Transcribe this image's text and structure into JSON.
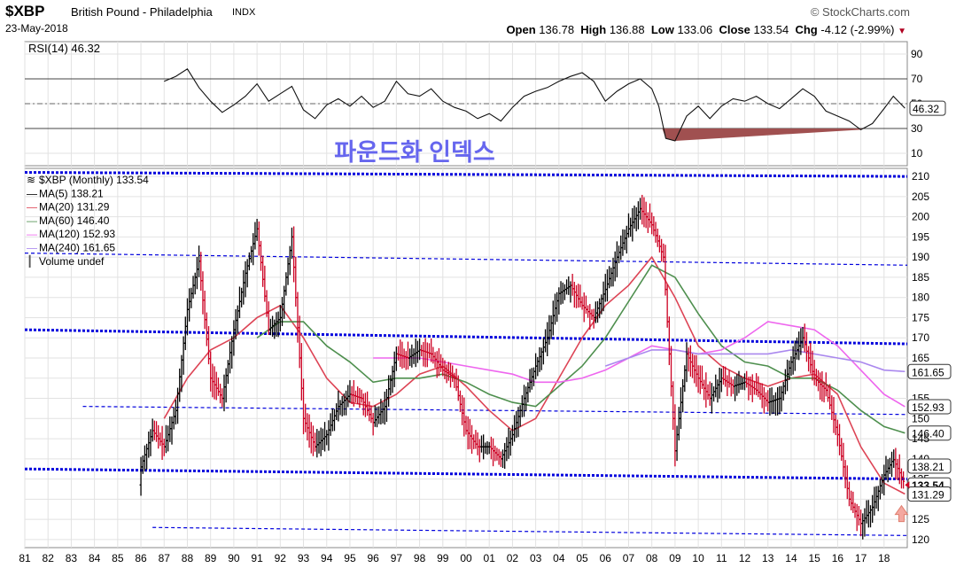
{
  "header": {
    "symbol": "$XBP",
    "name": "British Pound - Philadelphia",
    "exchange": "INDX",
    "brand": "© StockCharts.com",
    "date": "23-May-2018",
    "open_label": "Open",
    "open": "136.78",
    "high_label": "High",
    "high": "136.88",
    "low_label": "Low",
    "low": "133.06",
    "close_label": "Close",
    "close": "133.54",
    "chg_label": "Chg",
    "chg": "-4.12 (-2.99%)"
  },
  "annotation": "파운드화 인덱스",
  "colors": {
    "price": "#000000",
    "down_bar": "#cc0022",
    "ma5": "#222266",
    "ma20": "#dd4455",
    "ma60": "#4e8f4e",
    "ma120": "#ee66ee",
    "ma240": "#aa88ee",
    "trend": "#0000dd",
    "rsi_fill": "#a05050"
  },
  "chart_data": [
    {
      "type": "line",
      "title": "RSI(14) 46.32",
      "series": [
        {
          "name": "RSI(14)",
          "last": 46.32
        }
      ],
      "yticks": [
        10,
        30,
        50,
        70,
        90
      ],
      "ylim": [
        0,
        100
      ],
      "overbought": 70,
      "oversold": 30,
      "centerline": 50,
      "last_label": "46.32",
      "rsi": [
        [
          87,
          68
        ],
        [
          87.5,
          72
        ],
        [
          88,
          78
        ],
        [
          88.5,
          63
        ],
        [
          89,
          52
        ],
        [
          89.5,
          43
        ],
        [
          90,
          49
        ],
        [
          90.5,
          56
        ],
        [
          91,
          66
        ],
        [
          91.5,
          52
        ],
        [
          92,
          58
        ],
        [
          92.5,
          64
        ],
        [
          93,
          45
        ],
        [
          93.5,
          38
        ],
        [
          94,
          49
        ],
        [
          94.5,
          54
        ],
        [
          95,
          48
        ],
        [
          95.5,
          56
        ],
        [
          96,
          47
        ],
        [
          96.5,
          52
        ],
        [
          97,
          68
        ],
        [
          97.5,
          58
        ],
        [
          98,
          56
        ],
        [
          98.5,
          62
        ],
        [
          99,
          52
        ],
        [
          99.5,
          47
        ],
        [
          100,
          44
        ],
        [
          100.5,
          38
        ],
        [
          101,
          42
        ],
        [
          101.5,
          36
        ],
        [
          102,
          47
        ],
        [
          102.5,
          56
        ],
        [
          103,
          60
        ],
        [
          103.5,
          63
        ],
        [
          104,
          68
        ],
        [
          104.5,
          72
        ],
        [
          105,
          75
        ],
        [
          105.5,
          68
        ],
        [
          106,
          52
        ],
        [
          106.5,
          60
        ],
        [
          107,
          66
        ],
        [
          107.5,
          70
        ],
        [
          108,
          62
        ],
        [
          108.3,
          48
        ],
        [
          108.6,
          22
        ],
        [
          109,
          20
        ],
        [
          109.5,
          40
        ],
        [
          110,
          48
        ],
        [
          110.5,
          38
        ],
        [
          111,
          48
        ],
        [
          111.5,
          54
        ],
        [
          112,
          52
        ],
        [
          112.5,
          56
        ],
        [
          113,
          50
        ],
        [
          113.5,
          46
        ],
        [
          114,
          54
        ],
        [
          114.5,
          62
        ],
        [
          115,
          56
        ],
        [
          115.5,
          44
        ],
        [
          116,
          40
        ],
        [
          116.5,
          36
        ],
        [
          117,
          29
        ],
        [
          117.5,
          34
        ],
        [
          118,
          46
        ],
        [
          118.4,
          56
        ],
        [
          118.9,
          46.32
        ]
      ]
    },
    {
      "type": "line",
      "title": "$XBP (Monthly) 133.54",
      "x": [
        "81",
        "82",
        "83",
        "84",
        "85",
        "86",
        "87",
        "88",
        "89",
        "90",
        "91",
        "92",
        "93",
        "94",
        "95",
        "96",
        "97",
        "98",
        "99",
        "00",
        "01",
        "02",
        "03",
        "04",
        "05",
        "06",
        "07",
        "08",
        "09",
        "10",
        "11",
        "12",
        "13",
        "14",
        "15",
        "16",
        "17",
        "18"
      ],
      "ylim": [
        118,
        212
      ],
      "yticks": [
        120,
        125,
        130,
        135,
        140,
        145,
        150,
        155,
        160,
        165,
        170,
        175,
        180,
        185,
        190,
        195,
        200,
        205,
        210
      ],
      "series": [
        {
          "name": "$XBP (Monthly)",
          "last": 133.54,
          "values": [
            [
              86,
              138
            ],
            [
              86.5,
              147
            ],
            [
              87,
              143
            ],
            [
              87.5,
              152
            ],
            [
              88,
              177
            ],
            [
              88.5,
              189
            ],
            [
              89,
              160
            ],
            [
              89.5,
              155
            ],
            [
              90,
              172
            ],
            [
              90.5,
              186
            ],
            [
              91,
              197
            ],
            [
              91.5,
              172
            ],
            [
              92,
              175
            ],
            [
              92.5,
              195
            ],
            [
              93,
              150
            ],
            [
              93.5,
              143
            ],
            [
              94,
              146
            ],
            [
              94.5,
              153
            ],
            [
              95,
              156
            ],
            [
              95.5,
              155
            ],
            [
              96,
              149
            ],
            [
              96.5,
              153
            ],
            [
              97,
              166
            ],
            [
              97.5,
              165
            ],
            [
              98,
              167
            ],
            [
              98.5,
              166
            ],
            [
              99,
              162
            ],
            [
              99.5,
              160
            ],
            [
              100,
              147
            ],
            [
              100.5,
              143
            ],
            [
              101,
              143
            ],
            [
              101.5,
              140
            ],
            [
              102,
              146
            ],
            [
              102.5,
              155
            ],
            [
              103,
              163
            ],
            [
              103.5,
              170
            ],
            [
              104,
              181
            ],
            [
              104.5,
              183
            ],
            [
              105,
              178
            ],
            [
              105.5,
              175
            ],
            [
              106,
              182
            ],
            [
              106.5,
              190
            ],
            [
              107,
              197
            ],
            [
              107.5,
              202
            ],
            [
              108,
              198
            ],
            [
              108.5,
              190
            ],
            [
              109,
              142
            ],
            [
              109.5,
              166
            ],
            [
              110,
              160
            ],
            [
              110.5,
              155
            ],
            [
              111,
              160
            ],
            [
              111.5,
              158
            ],
            [
              112,
              159
            ],
            [
              112.5,
              157
            ],
            [
              113,
              154
            ],
            [
              113.5,
              155
            ],
            [
              114,
              164
            ],
            [
              114.5,
              170
            ],
            [
              115,
              160
            ],
            [
              115.5,
              157
            ],
            [
              116,
              146
            ],
            [
              116.5,
              130
            ],
            [
              117,
              124
            ],
            [
              117.5,
              128
            ],
            [
              118,
              136
            ],
            [
              118.4,
              140
            ],
            [
              118.9,
              133.54
            ]
          ]
        },
        {
          "name": "MA(5)",
          "last": 138.21
        },
        {
          "name": "MA(20)",
          "last": 131.29,
          "values": [
            [
              87,
              150
            ],
            [
              88,
              160
            ],
            [
              89,
              167
            ],
            [
              90,
              170
            ],
            [
              91,
              175
            ],
            [
              92,
              178
            ],
            [
              93,
              170
            ],
            [
              94,
              160
            ],
            [
              95,
              154
            ],
            [
              96,
              153
            ],
            [
              97,
              156
            ],
            [
              98,
              161
            ],
            [
              99,
              163
            ],
            [
              100,
              158
            ],
            [
              101,
              152
            ],
            [
              102,
              147
            ],
            [
              103,
              150
            ],
            [
              104,
              160
            ],
            [
              105,
              170
            ],
            [
              106,
              178
            ],
            [
              107,
              183
            ],
            [
              108,
              190
            ],
            [
              109,
              180
            ],
            [
              110,
              168
            ],
            [
              111,
              163
            ],
            [
              112,
              160
            ],
            [
              113,
              158
            ],
            [
              114,
              160
            ],
            [
              115,
              161
            ],
            [
              116,
              156
            ],
            [
              117,
              143
            ],
            [
              118,
              134
            ],
            [
              118.9,
              131.29
            ]
          ]
        },
        {
          "name": "MA(60)",
          "last": 146.4,
          "values": [
            [
              91,
              170
            ],
            [
              92,
              174
            ],
            [
              93,
              174
            ],
            [
              94,
              168
            ],
            [
              95,
              164
            ],
            [
              96,
              159
            ],
            [
              97,
              160
            ],
            [
              98,
              160
            ],
            [
              99,
              161
            ],
            [
              100,
              159
            ],
            [
              101,
              156
            ],
            [
              102,
              154
            ],
            [
              103,
              153
            ],
            [
              104,
              158
            ],
            [
              105,
              163
            ],
            [
              106,
              170
            ],
            [
              107,
              179
            ],
            [
              108,
              188
            ],
            [
              109,
              185
            ],
            [
              110,
              176
            ],
            [
              111,
              168
            ],
            [
              112,
              164
            ],
            [
              113,
              163
            ],
            [
              114,
              160
            ],
            [
              115,
              160
            ],
            [
              116,
              157
            ],
            [
              117,
              152
            ],
            [
              118,
              148
            ],
            [
              118.9,
              146.4
            ]
          ]
        },
        {
          "name": "MA(120)",
          "last": 152.93,
          "values": [
            [
              96,
              165
            ],
            [
              97,
              165
            ],
            [
              98,
              165
            ],
            [
              99,
              164
            ],
            [
              100,
              163
            ],
            [
              101,
              162
            ],
            [
              102,
              161
            ],
            [
              103,
              159
            ],
            [
              104,
              159
            ],
            [
              105,
              160
            ],
            [
              106,
              162
            ],
            [
              107,
              165
            ],
            [
              108,
              168
            ],
            [
              109,
              167
            ],
            [
              110,
              166
            ],
            [
              111,
              167
            ],
            [
              112,
              170
            ],
            [
              113,
              174
            ],
            [
              114,
              173
            ],
            [
              115,
              172
            ],
            [
              116,
              168
            ],
            [
              117,
              162
            ],
            [
              118,
              156
            ],
            [
              118.9,
              152.93
            ]
          ]
        },
        {
          "name": "MA(240)",
          "last": 161.65,
          "values": [
            [
              106,
              163
            ],
            [
              107,
              165
            ],
            [
              108,
              167
            ],
            [
              109,
              167
            ],
            [
              110,
              166
            ],
            [
              111,
              166
            ],
            [
              112,
              166
            ],
            [
              113,
              166
            ],
            [
              114,
              167
            ],
            [
              115,
              166
            ],
            [
              116,
              165
            ],
            [
              117,
              164
            ],
            [
              118,
              162
            ],
            [
              118.9,
              161.65
            ]
          ]
        },
        {
          "name": "Volume undef"
        }
      ],
      "trendlines": [
        [
          [
            81.0,
            211
          ],
          [
            119.0,
            210
          ]
        ],
        [
          [
            81.0,
            191
          ],
          [
            119.0,
            188
          ]
        ],
        [
          [
            81.0,
            172
          ],
          [
            119.0,
            168.5
          ]
        ],
        [
          [
            83.5,
            153
          ],
          [
            119.0,
            151
          ]
        ],
        [
          [
            81.0,
            137.5
          ],
          [
            119.0,
            135
          ]
        ],
        [
          [
            86.5,
            123
          ],
          [
            119.0,
            121
          ]
        ]
      ],
      "axis_labels_right": [
        "210",
        "205",
        "200",
        "195",
        "190",
        "185",
        "180",
        "175",
        "170",
        "165",
        "161.65",
        "155",
        "152.93",
        "150",
        "146.40",
        "145",
        "140",
        "138.21",
        "135",
        "133.54",
        "131.29",
        "125",
        "120"
      ]
    }
  ]
}
